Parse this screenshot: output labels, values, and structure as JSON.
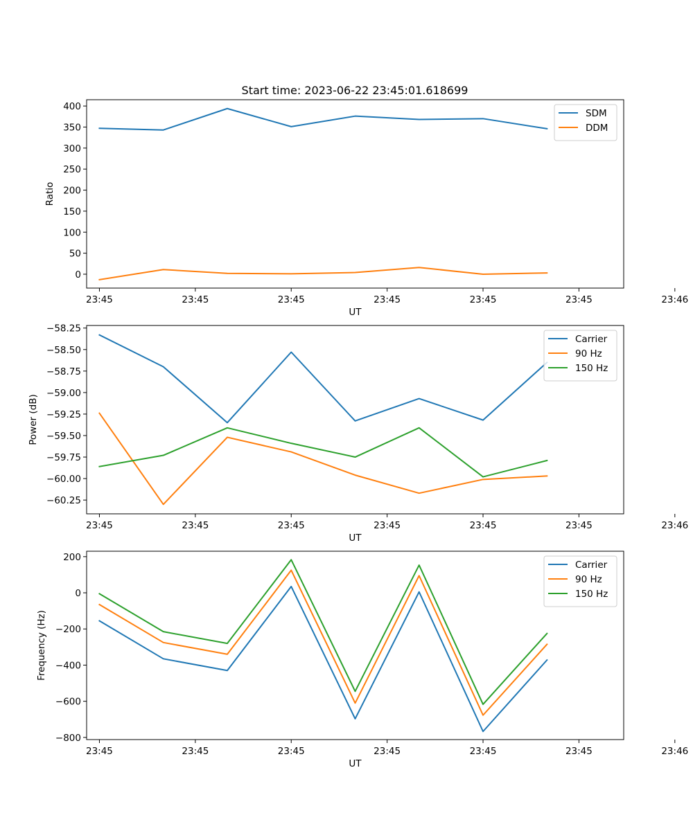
{
  "figure": {
    "title": "Start time: 2023-06-22 23:45:01.618699"
  },
  "chart_data": [
    {
      "type": "line",
      "title": "Start time: 2023-06-22 23:45:01.618699",
      "xlabel": "UT",
      "ylabel": "Ratio",
      "x": [
        1,
        2,
        3,
        4,
        5,
        6,
        7,
        8
      ],
      "xlim": [
        0.8,
        9.2
      ],
      "x_ticks": [
        1,
        2.5,
        4,
        5.5,
        7,
        8.5,
        10
      ],
      "x_tick_labels": [
        "23:45",
        "23:45",
        "23:45",
        "23:45",
        "23:45",
        "23:45",
        "23:46"
      ],
      "y_ticks": [
        0,
        50,
        100,
        150,
        200,
        250,
        300,
        350,
        400
      ],
      "y_tick_labels": [
        "0",
        "50",
        "100",
        "150",
        "200",
        "250",
        "300",
        "350",
        "400"
      ],
      "ylim": [
        -33,
        415
      ],
      "grid": false,
      "legend": "top-right",
      "series": [
        {
          "name": "SDM",
          "color": "#1f77b4",
          "values": [
            347,
            343,
            394,
            351,
            376,
            368,
            370,
            346
          ]
        },
        {
          "name": "DDM",
          "color": "#ff7f0e",
          "values": [
            -13,
            11,
            2,
            1,
            4,
            16,
            0,
            3
          ]
        }
      ]
    },
    {
      "type": "line",
      "title": "",
      "xlabel": "UT",
      "ylabel": "Power (dB)",
      "x": [
        1,
        2,
        3,
        4,
        5,
        6,
        7,
        8
      ],
      "xlim": [
        0.8,
        9.2
      ],
      "x_ticks": [
        1,
        2.5,
        4,
        5.5,
        7,
        8.5,
        10
      ],
      "x_tick_labels": [
        "23:45",
        "23:45",
        "23:45",
        "23:45",
        "23:45",
        "23:45",
        "23:46"
      ],
      "y_ticks": [
        -58.25,
        -58.5,
        -58.75,
        -59.0,
        -59.25,
        -59.5,
        -59.75,
        -60.0,
        -60.25
      ],
      "y_tick_labels": [
        "−58.25",
        "−58.50",
        "−58.75",
        "−59.00",
        "−59.25",
        "−59.50",
        "−59.75",
        "−60.00",
        "−60.25"
      ],
      "ylim": [
        -60.41,
        -58.22
      ],
      "grid": false,
      "legend": "top-right",
      "series": [
        {
          "name": "Carrier",
          "color": "#1f77b4",
          "values": [
            -58.33,
            -58.7,
            -59.35,
            -58.53,
            -59.33,
            -59.07,
            -59.32,
            -58.65
          ]
        },
        {
          "name": "90 Hz",
          "color": "#ff7f0e",
          "values": [
            -59.24,
            -60.3,
            -59.52,
            -59.69,
            -59.96,
            -60.17,
            -60.01,
            -59.97
          ]
        },
        {
          "name": "150 Hz",
          "color": "#2ca02c",
          "values": [
            -59.86,
            -59.73,
            -59.41,
            -59.59,
            -59.75,
            -59.41,
            -59.98,
            -59.79
          ]
        }
      ]
    },
    {
      "type": "line",
      "title": "",
      "xlabel": "UT",
      "ylabel": "Frequency (Hz)",
      "x": [
        1,
        2,
        3,
        4,
        5,
        6,
        7,
        8
      ],
      "xlim": [
        0.8,
        9.2
      ],
      "x_ticks": [
        1,
        2.5,
        4,
        5.5,
        7,
        8.5,
        10
      ],
      "x_tick_labels": [
        "23:45",
        "23:45",
        "23:45",
        "23:45",
        "23:45",
        "23:45",
        "23:46"
      ],
      "y_ticks": [
        200,
        0,
        -200,
        -400,
        -600,
        -800
      ],
      "y_tick_labels": [
        "200",
        "0",
        "−200",
        "−400",
        "−600",
        "−800"
      ],
      "ylim": [
        -812,
        230
      ],
      "grid": false,
      "legend": "top-right",
      "series": [
        {
          "name": "Carrier",
          "color": "#1f77b4",
          "values": [
            -155,
            -365,
            -430,
            35,
            -697,
            5,
            -767,
            -372
          ]
        },
        {
          "name": "90 Hz",
          "color": "#ff7f0e",
          "values": [
            -65,
            -275,
            -340,
            125,
            -610,
            95,
            -677,
            -285
          ]
        },
        {
          "name": "150 Hz",
          "color": "#2ca02c",
          "values": [
            -5,
            -215,
            -280,
            183,
            -545,
            153,
            -617,
            -225
          ]
        }
      ]
    }
  ]
}
